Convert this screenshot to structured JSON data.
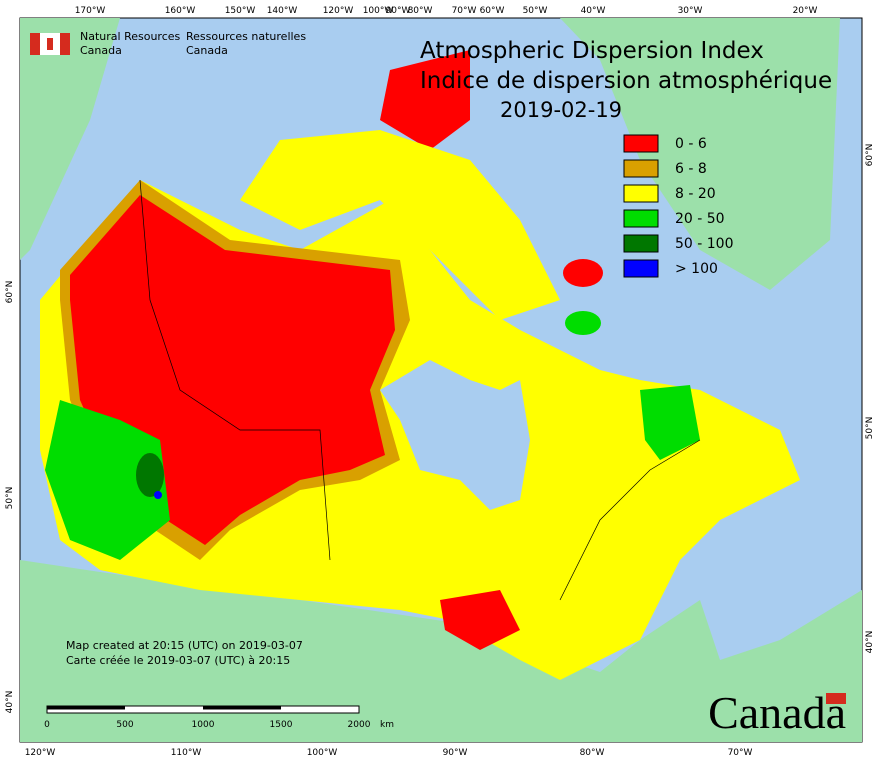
{
  "header": {
    "agency_en": [
      "Natural Resources",
      "Canada"
    ],
    "agency_fr": [
      "Ressources naturelles",
      "Canada"
    ]
  },
  "title": {
    "line1": "Atmospheric Dispersion Index",
    "line2": "Indice de dispersion atmosphérique",
    "date": "2019-02-19"
  },
  "legend": [
    {
      "label": "0 - 6",
      "color": "#ff0000"
    },
    {
      "label": "6 - 8",
      "color": "#d9a000"
    },
    {
      "label": "8 - 20",
      "color": "#ffff00"
    },
    {
      "label": "20 - 50",
      "color": "#00dd00"
    },
    {
      "label": "50 - 100",
      "color": "#007700"
    },
    {
      "label": "> 100",
      "color": "#0000ff"
    }
  ],
  "credits": [
    "Map created at 20:15 (UTC) on 2019-03-07",
    "Carte créée le 2019-03-07 (UTC) à 20:15"
  ],
  "scale": {
    "ticks": [
      "0",
      "500",
      "1000",
      "1500",
      "2000"
    ],
    "unit": "km"
  },
  "graticule": {
    "top": [
      "170°W",
      "160°W",
      "150°W",
      "140°W",
      "120°W",
      "100°W",
      "90°W",
      "80°W",
      "70°W",
      "60°W",
      "50°W",
      "40°W",
      "30°W",
      "20°W"
    ],
    "bottom": [
      "120°W",
      "110°W",
      "100°W",
      "90°W",
      "80°W",
      "70°W"
    ],
    "left": [
      "60°N",
      "50°N",
      "40°N"
    ],
    "right": [
      "60°N",
      "50°N",
      "40°N"
    ]
  },
  "wordmark": "Canada"
}
